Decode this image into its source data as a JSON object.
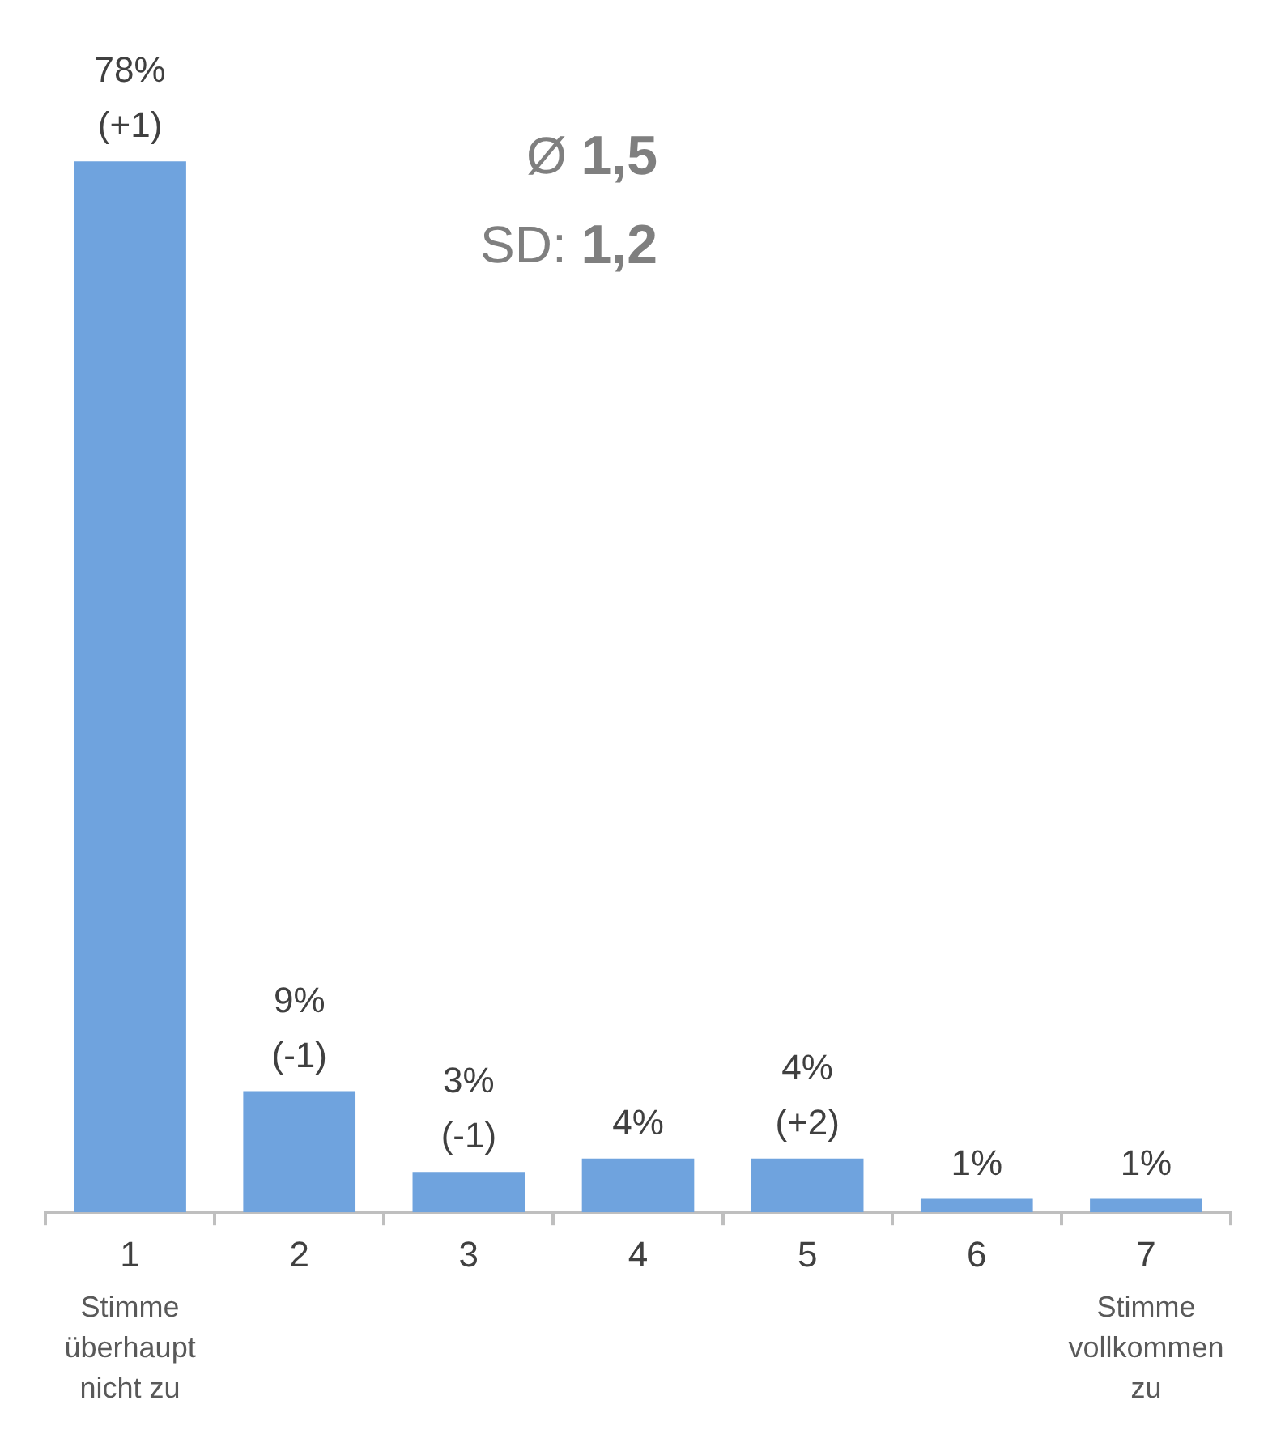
{
  "chart_data": {
    "type": "bar",
    "categories": [
      "1",
      "2",
      "3",
      "4",
      "5",
      "6",
      "7"
    ],
    "values": [
      78,
      9,
      3,
      4,
      4,
      1,
      1
    ],
    "value_labels": [
      "78%\n(+1)",
      "9%\n(-1)",
      "3%\n(-1)",
      "4%",
      "4%\n(+2)",
      "1%",
      "1%"
    ],
    "color": "#6fa3de",
    "annotations": [
      "Ø 1,5",
      "SD: 1,2",
      "Stimme\nüberhaupt\nnicht zu",
      "Stimme\nvollkommen\nzu"
    ]
  }
}
